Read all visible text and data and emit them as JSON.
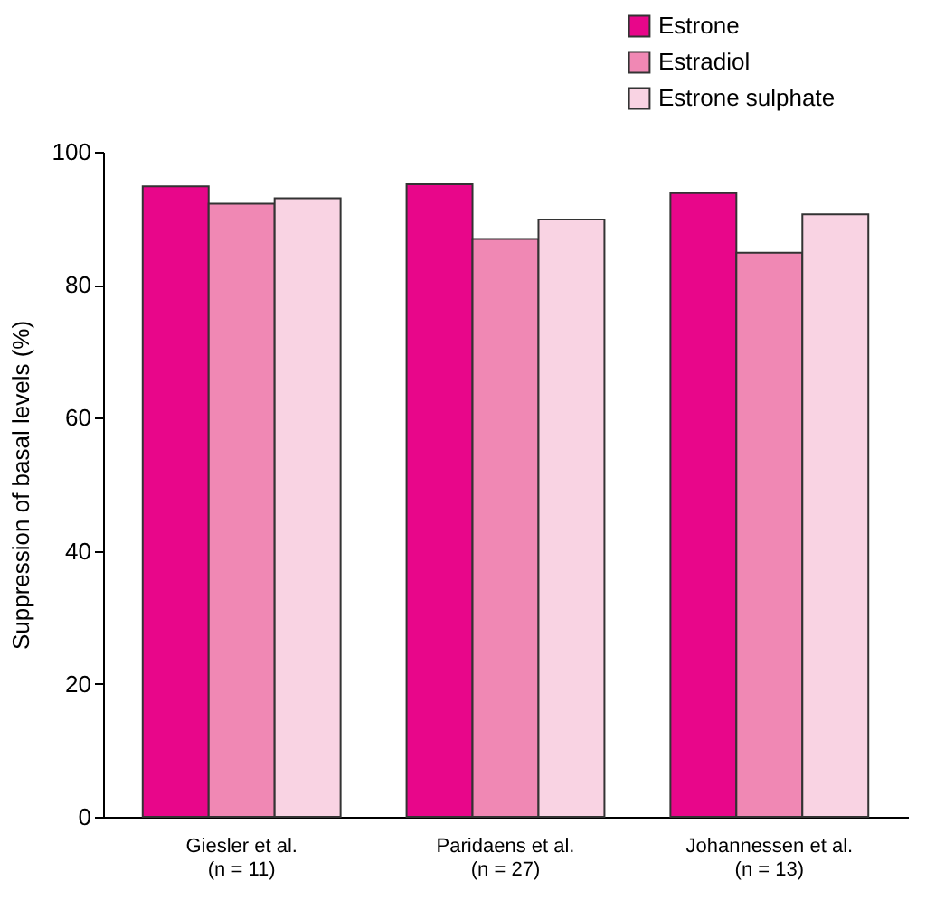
{
  "chart_data": {
    "type": "bar",
    "ylabel": "Suppression of basal levels (%)",
    "categories": [
      "Giesler et al.\n(n = 11)",
      "Paridaens et al.\n(n = 27)",
      "Johannessen et al.\n(n = 13)"
    ],
    "series": [
      {
        "name": "Estrone",
        "color": "#e8068a",
        "values": [
          94.8,
          95.1,
          93.8
        ]
      },
      {
        "name": "Estradiol",
        "color": "#f088b4",
        "values": [
          92.2,
          86.9,
          84.8
        ]
      },
      {
        "name": "Estrone sulphate",
        "color": "#f9d3e3",
        "values": [
          93.0,
          89.8,
          90.6
        ]
      }
    ],
    "ylim": [
      0,
      100
    ],
    "yticks": [
      0,
      20,
      40,
      60,
      80,
      100
    ],
    "grid": false,
    "legend": "top right"
  }
}
